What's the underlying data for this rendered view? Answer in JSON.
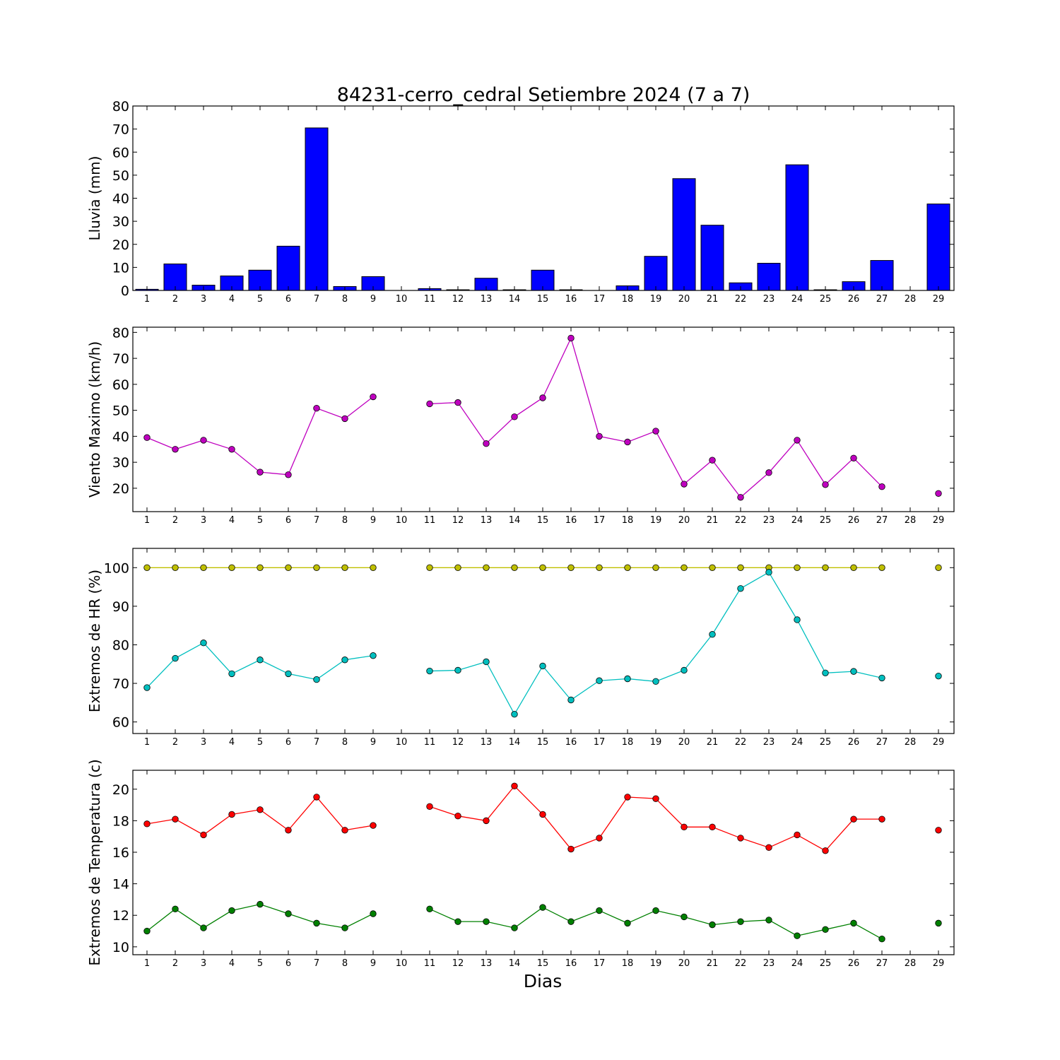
{
  "title": "84231-cerro_cedral Setiembre 2024  (7 a 7)",
  "xlabel": "Dias",
  "colors": {
    "lluvia": "#0000ff",
    "viento": "#bf00bf",
    "hr_max": "#bfbf00",
    "hr_min": "#00bfbf",
    "t_max": "#ff0000",
    "t_min": "#008000"
  },
  "chart_data": [
    {
      "type": "bar",
      "ylabel": "Lluvia (mm)",
      "ylim": [
        0,
        80
      ],
      "yticks": [
        0,
        10,
        20,
        30,
        40,
        50,
        60,
        70,
        80
      ],
      "categories": [
        1,
        2,
        3,
        4,
        5,
        6,
        7,
        8,
        9,
        10,
        11,
        12,
        13,
        14,
        15,
        16,
        17,
        18,
        19,
        20,
        21,
        22,
        23,
        24,
        25,
        26,
        27,
        28,
        29
      ],
      "series": [
        {
          "color_key": "lluvia",
          "values": [
            0.5,
            11.5,
            2.3,
            6.3,
            8.8,
            19.2,
            70.5,
            1.7,
            6.0,
            0,
            0.8,
            0.3,
            5.3,
            0.3,
            8.8,
            0.3,
            0,
            2.0,
            14.8,
            48.5,
            28.3,
            3.3,
            11.8,
            54.5,
            0.3,
            3.8,
            13.0,
            0,
            37.5
          ]
        }
      ],
      "grid": false
    },
    {
      "type": "line",
      "ylabel": "Viento Maximo (km/h)",
      "ylim": [
        11,
        82
      ],
      "yticks": [
        20,
        30,
        40,
        50,
        60,
        70,
        80
      ],
      "categories": [
        1,
        2,
        3,
        4,
        5,
        6,
        7,
        8,
        9,
        10,
        11,
        12,
        13,
        14,
        15,
        16,
        17,
        18,
        19,
        20,
        21,
        22,
        23,
        24,
        25,
        26,
        27,
        28,
        29
      ],
      "series": [
        {
          "color_key": "viento",
          "values": [
            39.5,
            35.0,
            38.5,
            35.0,
            26.2,
            25.2,
            50.8,
            46.8,
            55.2,
            null,
            52.5,
            53.0,
            37.2,
            47.5,
            54.8,
            77.8,
            40.0,
            37.8,
            42.0,
            21.6,
            30.8,
            16.5,
            26.0,
            38.5,
            21.4,
            31.6,
            20.6,
            null,
            18.0
          ]
        }
      ],
      "grid": false
    },
    {
      "type": "line",
      "ylabel": "Extremos de HR (%)",
      "ylim": [
        57,
        105
      ],
      "yticks": [
        60,
        70,
        80,
        90,
        100
      ],
      "categories": [
        1,
        2,
        3,
        4,
        5,
        6,
        7,
        8,
        9,
        10,
        11,
        12,
        13,
        14,
        15,
        16,
        17,
        18,
        19,
        20,
        21,
        22,
        23,
        24,
        25,
        26,
        27,
        28,
        29
      ],
      "series": [
        {
          "color_key": "hr_max",
          "values": [
            100,
            100,
            100,
            100,
            100,
            100,
            100,
            100,
            100,
            null,
            100,
            100,
            100,
            100,
            100,
            100,
            100,
            100,
            100,
            100,
            100,
            100,
            100,
            100,
            100,
            100,
            100,
            null,
            100
          ]
        },
        {
          "color_key": "hr_min",
          "values": [
            68.9,
            76.5,
            80.5,
            72.5,
            76.1,
            72.5,
            71.0,
            76.1,
            77.2,
            null,
            73.2,
            73.4,
            75.6,
            62.0,
            74.5,
            65.7,
            70.7,
            71.2,
            70.5,
            73.4,
            82.7,
            94.6,
            98.8,
            86.5,
            72.7,
            73.1,
            71.4,
            null,
            71.9
          ]
        }
      ],
      "grid": false
    },
    {
      "type": "line",
      "ylabel": "Extremos de Temperatura (c)",
      "ylim": [
        9.5,
        21.2
      ],
      "yticks": [
        10,
        12,
        14,
        16,
        18,
        20
      ],
      "categories": [
        1,
        2,
        3,
        4,
        5,
        6,
        7,
        8,
        9,
        10,
        11,
        12,
        13,
        14,
        15,
        16,
        17,
        18,
        19,
        20,
        21,
        22,
        23,
        24,
        25,
        26,
        27,
        28,
        29
      ],
      "series": [
        {
          "color_key": "t_max",
          "values": [
            17.8,
            18.1,
            17.1,
            18.4,
            18.7,
            17.4,
            19.5,
            17.4,
            17.7,
            null,
            18.9,
            18.3,
            18.0,
            20.2,
            18.4,
            16.2,
            16.9,
            19.5,
            19.4,
            17.6,
            17.6,
            16.9,
            16.3,
            17.1,
            16.1,
            18.1,
            18.1,
            null,
            17.4
          ]
        },
        {
          "color_key": "t_min",
          "values": [
            11.0,
            12.4,
            11.2,
            12.3,
            12.7,
            12.1,
            11.5,
            11.2,
            12.1,
            null,
            12.4,
            11.6,
            11.6,
            11.2,
            12.5,
            11.6,
            12.3,
            11.5,
            12.3,
            11.9,
            11.4,
            11.6,
            11.7,
            10.7,
            11.1,
            11.5,
            10.5,
            null,
            11.5
          ]
        }
      ],
      "grid": false
    }
  ]
}
